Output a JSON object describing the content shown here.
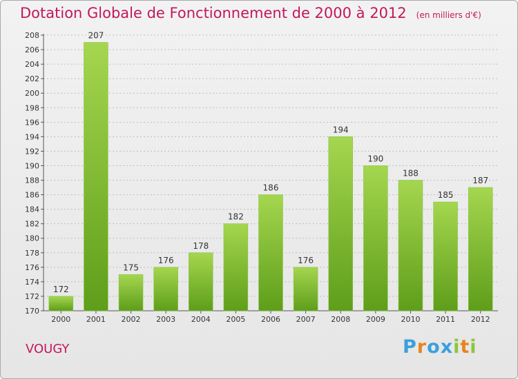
{
  "title": "Dotation Globale de Fonctionnement de 2000 à 2012",
  "subtitle": "(en milliers d'€)",
  "place": "VOUGY",
  "brand": {
    "letters": [
      "P",
      "r",
      "o",
      "x",
      "i",
      "t",
      "i"
    ],
    "colors": [
      "#3aa0dc",
      "#e8841f",
      "#3aa0dc",
      "#3aa0dc",
      "#8cc63f",
      "#e8841f",
      "#8cc63f"
    ]
  },
  "colors": {
    "title": "#c2185b",
    "bar_light": "#a5d64f",
    "bar_dark": "#5e9e1a",
    "grid": "#bdbdbd"
  },
  "chart_data": {
    "type": "bar",
    "title": "Dotation Globale de Fonctionnement de 2000 à 2012",
    "subtitle": "(en milliers d'€)",
    "categories": [
      "2000",
      "2001",
      "2002",
      "2003",
      "2004",
      "2005",
      "2006",
      "2007",
      "2008",
      "2009",
      "2010",
      "2011",
      "2012"
    ],
    "values": [
      172,
      207,
      175,
      176,
      178,
      182,
      186,
      176,
      194,
      190,
      188,
      185,
      187
    ],
    "ylim": [
      170,
      208
    ],
    "yticks": [
      170,
      172,
      174,
      176,
      178,
      180,
      182,
      184,
      186,
      188,
      190,
      192,
      194,
      196,
      198,
      200,
      202,
      204,
      206,
      208
    ],
    "grid": true
  }
}
